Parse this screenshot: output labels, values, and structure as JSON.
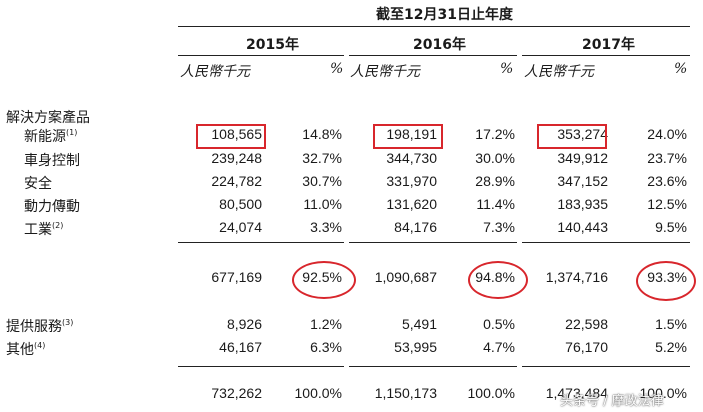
{
  "header": {
    "period": "截至12月31日止年度",
    "years": [
      "2015年",
      "2016年",
      "2017年"
    ],
    "unit": "人民幣千元",
    "pct": "%"
  },
  "section_title": "解決方案產品",
  "rows": [
    {
      "label": "新能源",
      "note": "(1)",
      "values": [
        "108,565",
        "14.8%",
        "198,191",
        "17.2%",
        "353,274",
        "24.0%"
      ]
    },
    {
      "label": "車身控制",
      "note": "",
      "values": [
        "239,248",
        "32.7%",
        "344,730",
        "30.0%",
        "349,912",
        "23.7%"
      ]
    },
    {
      "label": "安全",
      "note": "",
      "values": [
        "224,782",
        "30.7%",
        "331,970",
        "28.9%",
        "347,152",
        "23.6%"
      ]
    },
    {
      "label": "動力傳動",
      "note": "",
      "values": [
        "80,500",
        "11.0%",
        "131,620",
        "11.4%",
        "183,935",
        "12.5%"
      ]
    },
    {
      "label": "工業",
      "note": "(2)",
      "values": [
        "24,074",
        "3.3%",
        "84,176",
        "7.3%",
        "140,443",
        "9.5%"
      ]
    }
  ],
  "subtotal": {
    "values": [
      "677,169",
      "92.5%",
      "1,090,687",
      "94.8%",
      "1,374,716",
      "93.3%"
    ]
  },
  "other_rows": [
    {
      "label": "提供服務",
      "note": "(3)",
      "values": [
        "8,926",
        "1.2%",
        "5,491",
        "0.5%",
        "22,598",
        "1.5%"
      ]
    },
    {
      "label": "其他",
      "note": "(4)",
      "values": [
        "46,167",
        "6.3%",
        "53,995",
        "4.7%",
        "76,170",
        "5.2%"
      ]
    }
  ],
  "total": {
    "values": [
      "732,262",
      "100.0%",
      "1,150,173",
      "100.0%",
      "1,473,484",
      "100.0%"
    ]
  },
  "watermark": "头条号 / 摩改法律",
  "highlight_color": "#d8262c"
}
